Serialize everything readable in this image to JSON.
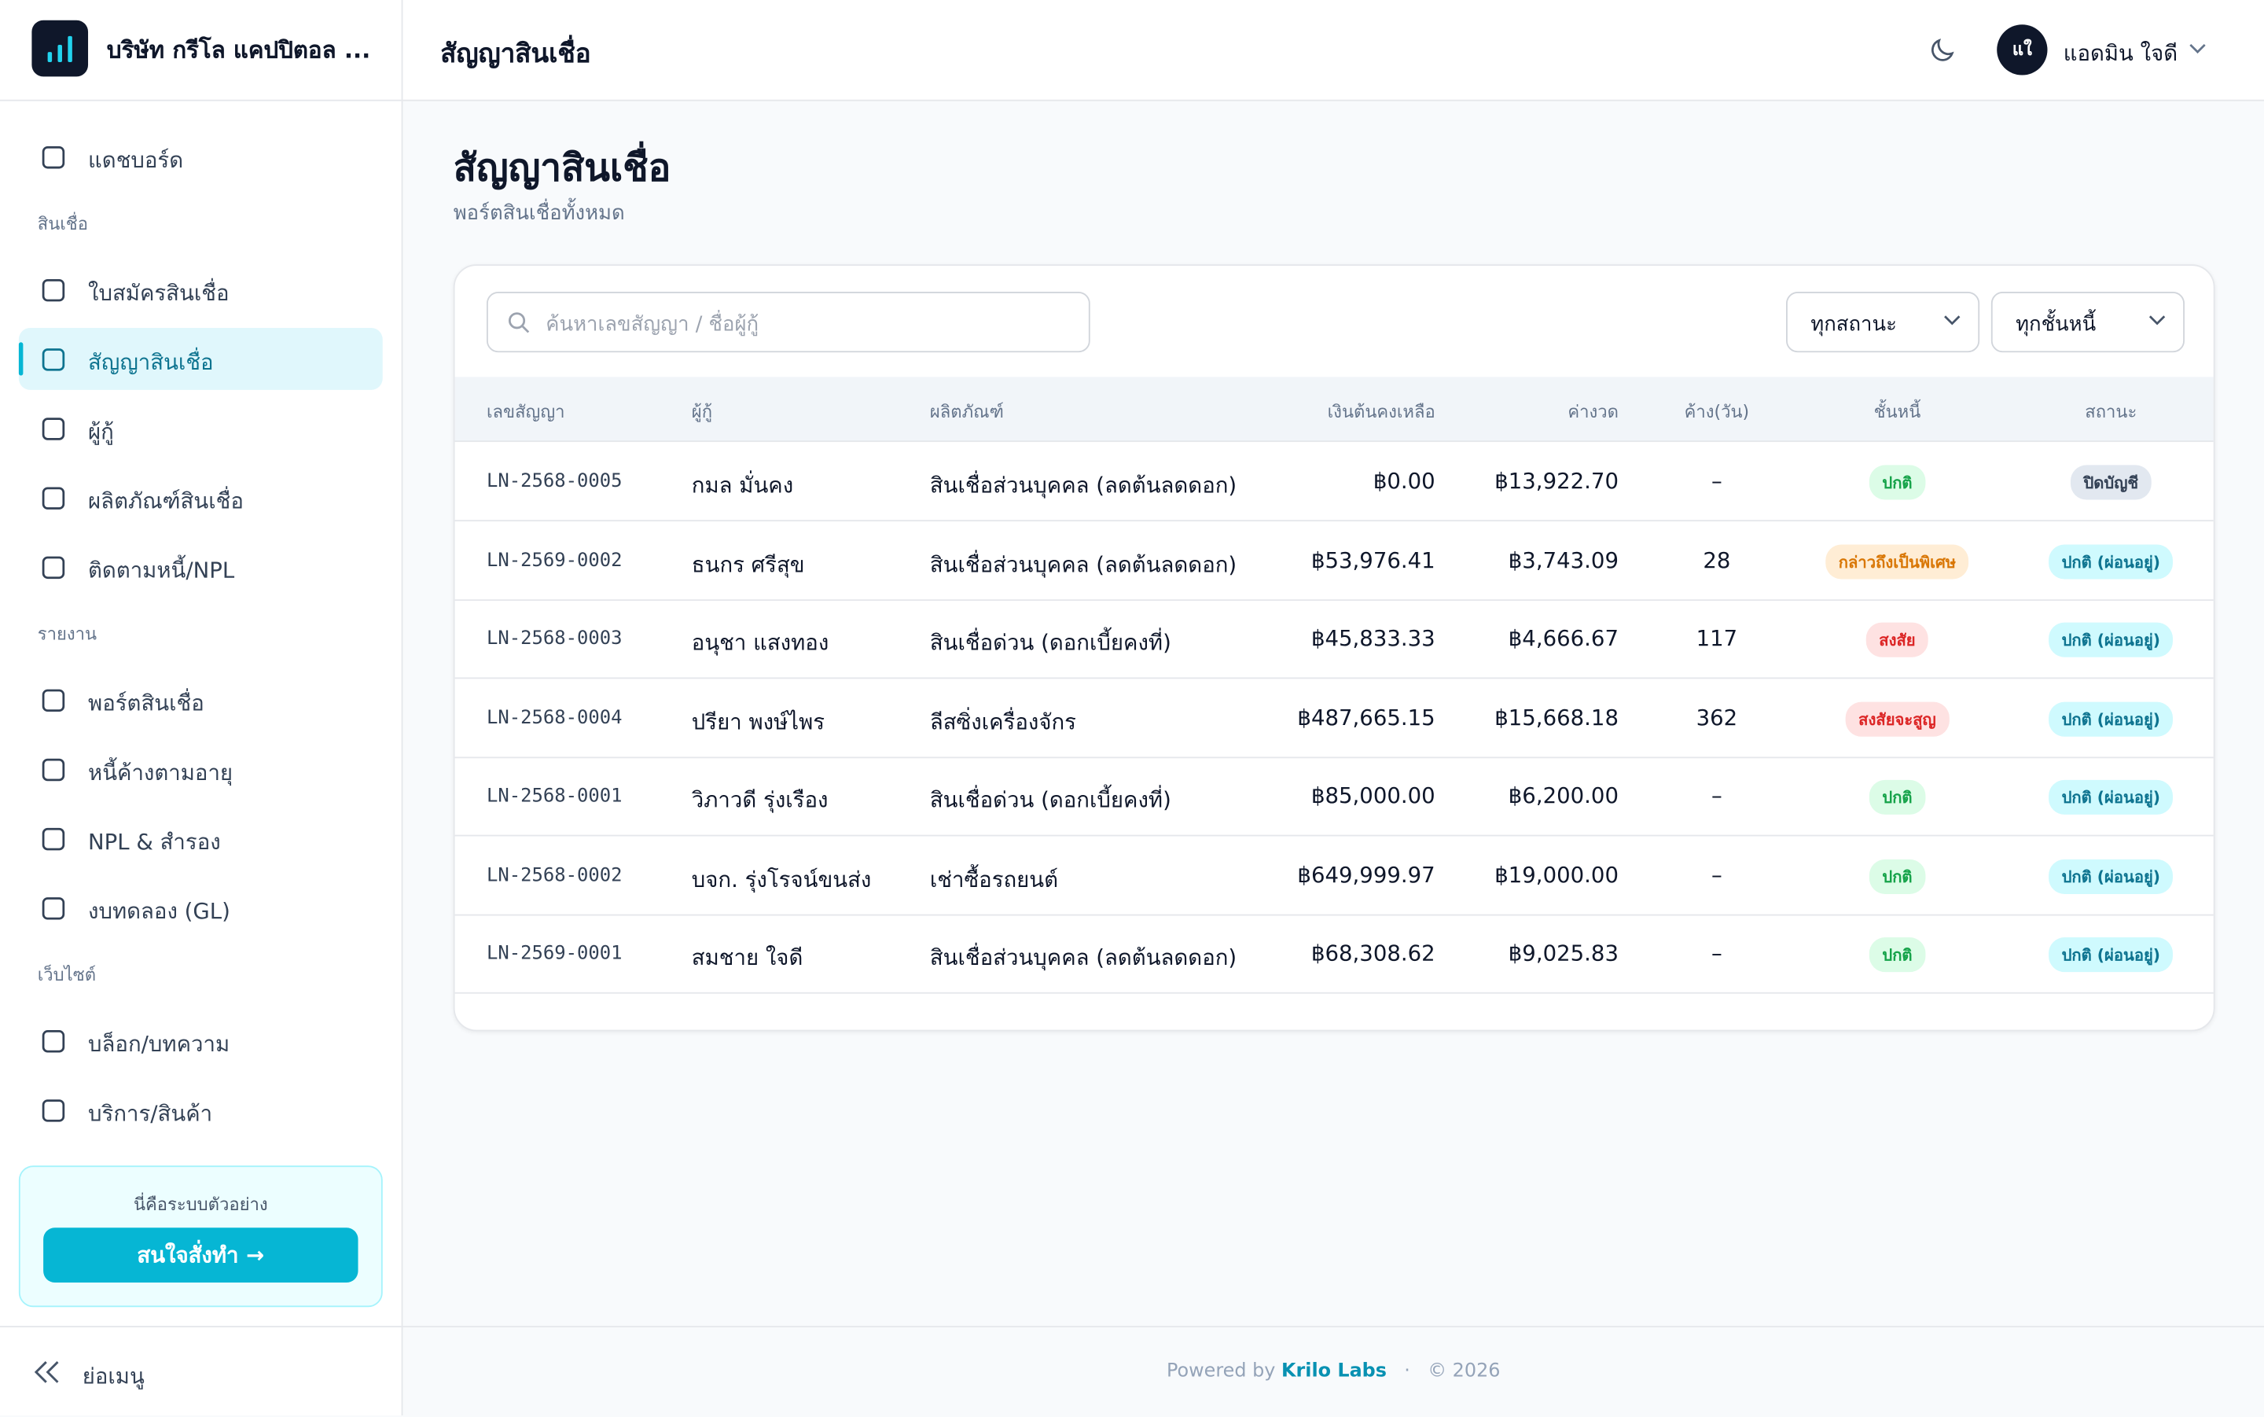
{
  "sidebar": {
    "brand": "บริษัท กรีโล แคปปิตอล ...",
    "groups": [
      {
        "items": [
          {
            "label": "แดชบอร์ด"
          }
        ]
      },
      {
        "heading": "สินเชื่อ",
        "items": [
          {
            "label": "ใบสมัครสินเชื่อ"
          },
          {
            "label": "สัญญาสินเชื่อ",
            "active": true
          },
          {
            "label": "ผู้กู้"
          },
          {
            "label": "ผลิตภัณฑ์สินเชื่อ"
          },
          {
            "label": "ติดตามหนี้/NPL"
          }
        ]
      },
      {
        "heading": "รายงาน",
        "items": [
          {
            "label": "พอร์ตสินเชื่อ"
          },
          {
            "label": "หนี้ค้างตามอายุ"
          },
          {
            "label": "NPL & สำรอง"
          },
          {
            "label": "งบทดลอง (GL)"
          }
        ]
      },
      {
        "heading": "เว็บไซต์",
        "items": [
          {
            "label": "บล็อก/บทความ"
          },
          {
            "label": "บริการ/สินค้า"
          }
        ]
      }
    ],
    "demo_note": "นี่คือระบบตัวอย่าง",
    "cta": "สนใจสั่งทำ →",
    "collapse": "ย่อเมนู"
  },
  "header": {
    "title": "สัญญาสินเชื่อ",
    "user_initials": "แใ",
    "user_name": "แอดมิน ใจดี"
  },
  "page": {
    "heading": "สัญญาสินเชื่อ",
    "subheading": "พอร์ตสินเชื่อทั้งหมด",
    "search_placeholder": "ค้นหาเลขสัญญา / ชื่อผู้กู้",
    "filters": [
      "ทุกสถานะ",
      "ทุกชั้นหนี้"
    ]
  },
  "table": {
    "columns": [
      "เลขสัญญา",
      "ผู้กู้",
      "ผลิตภัณฑ์",
      "เงินต้นคงเหลือ",
      "ค่างวด",
      "ค้าง(วัน)",
      "ชั้นหนี้",
      "สถานะ"
    ],
    "rows": [
      [
        "LN-2568-0005",
        "กมล มั่นคง",
        "สินเชื่อส่วนบุคคล (ลดต้นลดดอก)",
        "฿0.00",
        "฿13,922.70",
        "–",
        {
          "text": "ปกติ",
          "color": "#16a34a",
          "bg": "#dcfce7"
        },
        {
          "text": "ปิดบัญชี",
          "color": "#334155",
          "bg": "#e2e8f0"
        }
      ],
      [
        "LN-2569-0002",
        "ธนกร ศรีสุข",
        "สินเชื่อส่วนบุคคล (ลดต้นลดดอก)",
        "฿53,976.41",
        "฿3,743.09",
        "28",
        {
          "text": "กล่าวถึงเป็นพิเศษ",
          "color": "#d97706",
          "bg": "#ffedd5"
        },
        {
          "text": "ปกติ (ผ่อนอยู่)",
          "color": "#0e7490",
          "bg": "#cffafe"
        }
      ],
      [
        "LN-2568-0003",
        "อนุชา แสงทอง",
        "สินเชื่อด่วน (ดอกเบี้ยคงที่)",
        "฿45,833.33",
        "฿4,666.67",
        "117",
        {
          "text": "สงสัย",
          "color": "#dc2626",
          "bg": "#fee2e2"
        },
        {
          "text": "ปกติ (ผ่อนอยู่)",
          "color": "#0e7490",
          "bg": "#cffafe"
        }
      ],
      [
        "LN-2568-0004",
        "ปรียา พงษ์ไพร",
        "ลีสซิ่งเครื่องจักร",
        "฿487,665.15",
        "฿15,668.18",
        "362",
        {
          "text": "สงสัยจะสูญ",
          "color": "#dc2626",
          "bg": "#fee2e2"
        },
        {
          "text": "ปกติ (ผ่อนอยู่)",
          "color": "#0e7490",
          "bg": "#cffafe"
        }
      ],
      [
        "LN-2568-0001",
        "วิภาวดี รุ่งเรือง",
        "สินเชื่อด่วน (ดอกเบี้ยคงที่)",
        "฿85,000.00",
        "฿6,200.00",
        "–",
        {
          "text": "ปกติ",
          "color": "#16a34a",
          "bg": "#dcfce7"
        },
        {
          "text": "ปกติ (ผ่อนอยู่)",
          "color": "#0e7490",
          "bg": "#cffafe"
        }
      ],
      [
        "LN-2568-0002",
        "บจก. รุ่งโรจน์ขนส่ง",
        "เช่าซื้อรถยนต์",
        "฿649,999.97",
        "฿19,000.00",
        "–",
        {
          "text": "ปกติ",
          "color": "#16a34a",
          "bg": "#dcfce7"
        },
        {
          "text": "ปกติ (ผ่อนอยู่)",
          "color": "#0e7490",
          "bg": "#cffafe"
        }
      ],
      [
        "LN-2569-0001",
        "สมชาย ใจดี",
        "สินเชื่อส่วนบุคคล (ลดต้นลดดอก)",
        "฿68,308.62",
        "฿9,025.83",
        "–",
        {
          "text": "ปกติ",
          "color": "#16a34a",
          "bg": "#dcfce7"
        },
        {
          "text": "ปกติ (ผ่อนอยู่)",
          "color": "#0e7490",
          "bg": "#cffafe"
        }
      ]
    ]
  },
  "footer": {
    "powered_by": "Powered by",
    "brand": "Krilo Labs",
    "copyright": "© 2026"
  }
}
